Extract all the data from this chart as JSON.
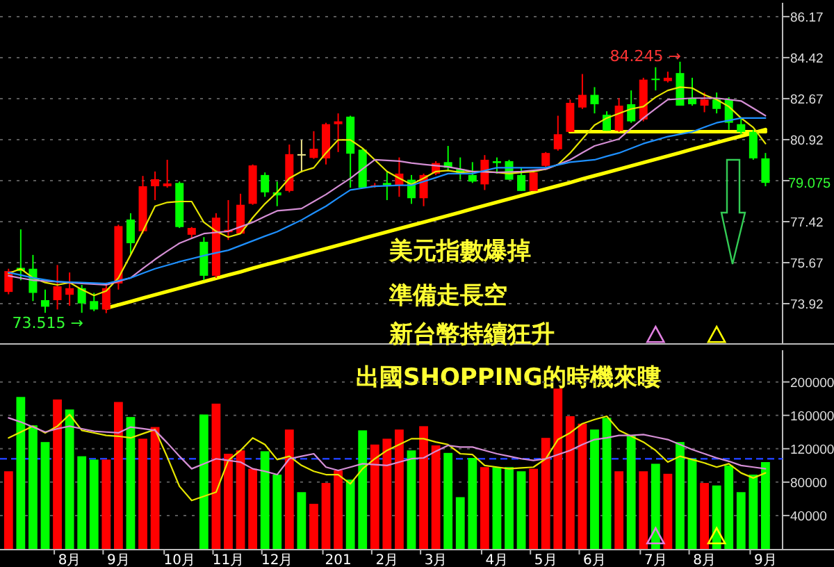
{
  "chart_data": [
    {
      "type": "candlestick",
      "ohlc": [
        [
          74.42,
          75.41,
          74.32,
          75.31
        ],
        [
          75.45,
          77.09,
          74.92,
          75.31
        ],
        [
          75.41,
          76.0,
          74.03,
          74.38
        ],
        [
          74.07,
          74.52,
          73.53,
          73.79
        ],
        [
          74.07,
          75.57,
          73.67,
          74.66
        ],
        [
          74.3,
          75.25,
          73.83,
          74.58
        ],
        [
          74.58,
          74.72,
          73.53,
          73.93
        ],
        [
          74.03,
          74.38,
          73.6,
          73.67
        ],
        [
          73.67,
          74.82,
          73.515,
          74.58
        ],
        [
          74.78,
          77.29,
          74.52,
          77.23
        ],
        [
          77.51,
          77.78,
          76.04,
          76.5
        ],
        [
          77.01,
          79.37,
          76.91,
          78.93
        ],
        [
          78.93,
          79.56,
          78.34,
          79.23
        ],
        [
          78.93,
          80.06,
          78.87,
          79.05
        ],
        [
          79.07,
          79.13,
          77.15,
          77.19
        ],
        [
          76.86,
          77.19,
          76.7,
          77.15
        ],
        [
          76.56,
          76.76,
          74.92,
          75.11
        ],
        [
          75.11,
          77.78,
          75.02,
          77.59
        ],
        [
          76.97,
          78.34,
          76.64,
          77.07
        ],
        [
          76.91,
          78.61,
          76.91,
          78.14
        ],
        [
          78.18,
          79.86,
          78.14,
          79.82
        ],
        [
          79.41,
          79.52,
          78.48,
          78.67
        ],
        [
          78.67,
          79.13,
          78.08,
          78.54
        ],
        [
          78.73,
          80.71,
          78.67,
          80.3
        ],
        [
          80.3,
          80.91,
          79.52,
          80.3
        ],
        [
          80.14,
          81.28,
          80.1,
          80.53
        ],
        [
          80.12,
          81.64,
          79.86,
          81.58
        ],
        [
          81.58,
          82.04,
          80.39,
          81.7
        ],
        [
          81.9,
          81.94,
          78.87,
          80.32
        ],
        [
          80.49,
          80.55,
          78.87,
          78.87
        ],
        [
          78.97,
          79.07,
          78.87,
          78.97
        ],
        [
          79.07,
          79.56,
          78.34,
          78.97
        ],
        [
          78.97,
          80.16,
          78.48,
          79.47
        ],
        [
          79.21,
          79.41,
          78.18,
          78.42
        ],
        [
          78.42,
          79.47,
          78.08,
          79.41
        ],
        [
          79.47,
          80.0,
          79.41,
          79.92
        ],
        [
          79.96,
          80.65,
          79.6,
          79.72
        ],
        [
          79.66,
          80.16,
          79.21,
          79.47
        ],
        [
          79.41,
          79.96,
          79.07,
          79.13
        ],
        [
          79.01,
          80.26,
          78.77,
          80.06
        ],
        [
          80.0,
          80.16,
          79.47,
          79.92
        ],
        [
          80.0,
          80.06,
          79.21,
          79.21
        ],
        [
          79.41,
          79.72,
          78.73,
          78.73
        ],
        [
          78.73,
          79.6,
          78.73,
          79.52
        ],
        [
          79.8,
          80.39,
          79.76,
          80.35
        ],
        [
          80.51,
          81.94,
          80.45,
          81.15
        ],
        [
          81.25,
          82.63,
          81.25,
          82.49
        ],
        [
          82.29,
          83.72,
          82.23,
          82.83
        ],
        [
          82.83,
          83.16,
          82.04,
          82.43
        ],
        [
          81.98,
          82.13,
          81.3,
          81.3
        ],
        [
          81.3,
          82.69,
          81.25,
          82.37
        ],
        [
          82.43,
          83.02,
          81.64,
          81.7
        ],
        [
          81.78,
          83.56,
          81.7,
          83.48
        ],
        [
          83.52,
          84.01,
          83.02,
          83.48
        ],
        [
          83.42,
          83.82,
          83.36,
          83.56
        ],
        [
          83.76,
          84.245,
          82.37,
          82.37
        ],
        [
          82.69,
          83.56,
          82.37,
          82.43
        ],
        [
          82.37,
          82.93,
          82.09,
          82.63
        ],
        [
          82.63,
          82.93,
          82.04,
          82.23
        ],
        [
          82.63,
          82.73,
          81.34,
          81.64
        ],
        [
          81.58,
          81.84,
          81.15,
          81.25
        ],
        [
          81.25,
          81.34,
          80.06,
          80.12
        ],
        [
          80.12,
          80.35,
          78.93,
          79.075
        ]
      ],
      "colors": [
        "#ff0000",
        "#00ff00",
        "#00ff00",
        "#00ff00",
        "#ff0000",
        "#ff0000",
        "#00ff00",
        "#00ff00",
        "#ff0000",
        "#ff0000",
        "#00ff00",
        "#ff0000",
        "#ff0000",
        "#ff0000",
        "#00ff00",
        "#ff0000",
        "#00ff00",
        "#ff0000",
        "#ff0000",
        "#ff0000",
        "#ff0000",
        "#00ff00",
        "#00ff00",
        "#ff0000",
        "#f0e68c",
        "#ff0000",
        "#ff0000",
        "#ff0000",
        "#00ff00",
        "#00ff00",
        "#ff0000",
        "#00ff00",
        "#ff0000",
        "#00ff00",
        "#ff0000",
        "#ff0000",
        "#00ff00",
        "#00ff00",
        "#00ff00",
        "#ff0000",
        "#00ff00",
        "#00ff00",
        "#00ff00",
        "#ff0000",
        "#ff0000",
        "#ff0000",
        "#ff0000",
        "#ff0000",
        "#00ff00",
        "#00ff00",
        "#ff0000",
        "#00ff00",
        "#ff0000",
        "#00ff00",
        "#ff0000",
        "#00ff00",
        "#00ff00",
        "#ff0000",
        "#00ff00",
        "#00ff00",
        "#00ff00",
        "#00ff00",
        "#00ff00"
      ],
      "series": [
        {
          "type": "line",
          "color": "#e6e600",
          "values": [
            75.21,
            75.41,
            75.02,
            74.82,
            74.72,
            74.82,
            74.52,
            74.27,
            74.46,
            75.02,
            76.0,
            77.01,
            78.08,
            78.24,
            78.28,
            78.28,
            77.39,
            77.01,
            76.76,
            76.91,
            77.59,
            78.18,
            78.67,
            79.27,
            79.56,
            79.72,
            80.35,
            80.91,
            80.91,
            80.55,
            80.06,
            79.56,
            79.27,
            79.01,
            79.27,
            79.56,
            79.6,
            79.52,
            79.56,
            79.56,
            79.52,
            79.47,
            79.52,
            79.56,
            79.66,
            79.86,
            80.35,
            80.95,
            81.54,
            81.84,
            82.04,
            82.23,
            82.33,
            82.73,
            83.02,
            83.16,
            83.12,
            82.83,
            82.63,
            82.33,
            81.84,
            81.44,
            80.75
          ]
        },
        {
          "type": "line",
          "color": "#d58fd5",
          "values": [
            75.11,
            75.01,
            74.92,
            74.89,
            74.86,
            74.82,
            74.78,
            74.75,
            74.72,
            74.87,
            75.02,
            75.42,
            75.81,
            76.16,
            76.5,
            76.71,
            76.91,
            76.96,
            77.01,
            77.2,
            77.39,
            77.64,
            77.88,
            77.93,
            77.98,
            78.28,
            78.58,
            78.93,
            79.27,
            79.67,
            80.06,
            80.03,
            80.0,
            79.92,
            79.86,
            79.81,
            79.76,
            79.66,
            79.56,
            79.54,
            79.52,
            79.54,
            79.56,
            79.61,
            79.66,
            79.86,
            80.06,
            80.36,
            80.65,
            80.8,
            80.95,
            81.4,
            81.84,
            82.24,
            82.63,
            82.66,
            82.69,
            82.69,
            82.69,
            82.63,
            82.57,
            82.26,
            81.94
          ]
        },
        {
          "type": "line",
          "color": "#1e90ff",
          "values": [
            75.25,
            75.14,
            75.02,
            74.94,
            74.86,
            74.84,
            74.82,
            74.8,
            74.78,
            74.9,
            75.02,
            75.22,
            75.41,
            75.56,
            75.71,
            75.84,
            75.97,
            76.09,
            76.2,
            76.4,
            76.6,
            76.8,
            76.99,
            77.24,
            77.49,
            77.79,
            78.08,
            78.43,
            78.77,
            78.85,
            78.93,
            78.95,
            78.97,
            78.97,
            79.13,
            79.3,
            79.47,
            79.47,
            79.47,
            79.6,
            79.72,
            79.72,
            79.72,
            79.72,
            79.72,
            79.84,
            79.96,
            80.01,
            80.06,
            80.21,
            80.35,
            80.55,
            80.75,
            80.9,
            81.05,
            81.15,
            81.25,
            81.45,
            81.64,
            81.74,
            81.84,
            81.84,
            81.84
          ]
        },
        {
          "type": "line",
          "color": "#ffff00",
          "values": [
            null,
            null,
            null,
            null,
            null,
            null,
            null,
            null,
            73.73,
            73.87,
            74.01,
            74.16,
            74.3,
            74.44,
            74.58,
            74.72,
            74.86,
            75.0,
            75.14,
            75.28,
            75.43,
            75.57,
            75.71,
            75.85,
            75.99,
            76.13,
            76.27,
            76.41,
            76.55,
            76.7,
            76.84,
            76.98,
            77.12,
            77.26,
            77.4,
            77.54,
            77.68,
            77.82,
            77.97,
            78.11,
            78.25,
            78.39,
            78.53,
            78.67,
            78.81,
            78.95,
            79.09,
            79.24,
            79.38,
            79.52,
            79.66,
            79.8,
            79.94,
            80.08,
            80.22,
            80.36,
            80.51,
            80.65,
            80.79,
            80.93,
            81.07,
            81.21,
            81.35
          ]
        },
        {
          "type": "line",
          "color": "#ffff00",
          "values": [
            null,
            null,
            null,
            null,
            null,
            null,
            null,
            null,
            null,
            null,
            null,
            null,
            null,
            null,
            null,
            null,
            null,
            null,
            null,
            null,
            null,
            null,
            null,
            null,
            null,
            null,
            null,
            null,
            null,
            null,
            null,
            null,
            null,
            null,
            null,
            null,
            null,
            null,
            null,
            null,
            null,
            null,
            null,
            null,
            null,
            null,
            81.26,
            81.26,
            81.26,
            81.26,
            81.26,
            81.26,
            81.26,
            81.26,
            81.26,
            81.26,
            81.26,
            81.26,
            81.26,
            81.26,
            81.26,
            81.26,
            81.26
          ]
        },
        {
          "type": "scatter",
          "marker": "triangle",
          "values": [
            null,
            null,
            null,
            null,
            null,
            null,
            null,
            null,
            null,
            null,
            null,
            null,
            null,
            null,
            null,
            null,
            null,
            null,
            null,
            null,
            null,
            null,
            null,
            null,
            null,
            null,
            null,
            null,
            null,
            null,
            null,
            null,
            null,
            null,
            null,
            null,
            null,
            null,
            null,
            null,
            null,
            null,
            null,
            null,
            null,
            null,
            null,
            null,
            null,
            null,
            null,
            null,
            null,
            72.58,
            null,
            null,
            null,
            null,
            72.58,
            null,
            null,
            null,
            null
          ],
          "colors": [
            null,
            null,
            null,
            null,
            null,
            null,
            null,
            null,
            null,
            null,
            null,
            null,
            null,
            null,
            null,
            null,
            null,
            null,
            null,
            null,
            null,
            null,
            null,
            null,
            null,
            null,
            null,
            null,
            null,
            null,
            null,
            null,
            null,
            null,
            null,
            null,
            null,
            null,
            null,
            null,
            null,
            null,
            null,
            null,
            null,
            null,
            null,
            null,
            null,
            null,
            null,
            null,
            null,
            "#e080e0",
            null,
            null,
            null,
            null,
            "#ffff00",
            null,
            null,
            null,
            null
          ]
        }
      ],
      "ylim": [
        72.23,
        86.76
      ],
      "yticks": [
        73.92,
        75.67,
        77.42,
        {
          "value": 79.17,
          "label": null
        },
        80.92,
        82.67,
        84.42,
        86.17
      ],
      "grid": "y",
      "annotations": [
        "美元指數爆掉",
        "準備走長空",
        "新台幣持續狂升",
        "出國SHOPPING的時機來瞜",
        "73.515 →",
        "84.245 →",
        "79.075"
      ]
    },
    {
      "type": "bar",
      "categories": [
        null,
        null,
        null,
        null,
        null,
        "8月",
        null,
        null,
        null,
        "9月",
        null,
        null,
        null,
        null,
        "10月",
        null,
        null,
        null,
        "11月",
        null,
        null,
        null,
        "12月",
        null,
        null,
        null,
        null,
        "201",
        null,
        null,
        null,
        "2月",
        null,
        null,
        null,
        "3月",
        null,
        null,
        null,
        null,
        "4月",
        null,
        null,
        null,
        "5月",
        null,
        null,
        null,
        "6月",
        null,
        null,
        null,
        null,
        "7月",
        null,
        null,
        null,
        "8月",
        null,
        null,
        null,
        null,
        "9月"
      ],
      "series": [
        {
          "type": "bar",
          "values": [
            93000,
            182000,
            148000,
            128000,
            179000,
            167000,
            111000,
            107000,
            107000,
            176000,
            158000,
            132000,
            146000,
            null,
            null,
            null,
            161000,
            174000,
            114000,
            118000,
            96000,
            117000,
            89000,
            143000,
            68000,
            54000,
            79000,
            94000,
            83000,
            142000,
            125000,
            132000,
            143000,
            118000,
            147000,
            124000,
            115000,
            62000,
            109000,
            98000,
            98000,
            98000,
            93000,
            96000,
            133000,
            192000,
            159000,
            150000,
            143000,
            157000,
            93000,
            136000,
            93000,
            102000,
            90000,
            128000,
            108000,
            79000,
            76000,
            100000,
            68000,
            89000,
            104000
          ],
          "colors": [
            "#ff0000",
            "#00ff00",
            "#00ff00",
            "#00ff00",
            "#ff0000",
            "#00ff00",
            "#00ff00",
            "#00ff00",
            "#ff0000",
            "#ff0000",
            "#00ff00",
            "#ff0000",
            "#ff0000",
            null,
            null,
            null,
            "#00ff00",
            "#ff0000",
            "#ff0000",
            "#ff0000",
            "#ff0000",
            "#00ff00",
            "#00ff00",
            "#ff0000",
            "#00ff00",
            "#ff0000",
            "#ff0000",
            "#ff0000",
            "#00ff00",
            "#00ff00",
            "#ff0000",
            "#ff0000",
            "#ff0000",
            "#00ff00",
            "#ff0000",
            "#ff0000",
            "#00ff00",
            "#00ff00",
            "#00ff00",
            "#ff0000",
            "#00ff00",
            "#00ff00",
            "#00ff00",
            "#ff0000",
            "#ff0000",
            "#ff0000",
            "#ff0000",
            "#ff0000",
            "#00ff00",
            "#00ff00",
            "#ff0000",
            "#00ff00",
            "#ff0000",
            "#00ff00",
            "#ff0000",
            "#00ff00",
            "#00ff00",
            "#ff0000",
            "#00ff00",
            "#00ff00",
            "#00ff00",
            "#00ff00",
            "#00ff00"
          ]
        },
        {
          "type": "line",
          "color": "#e6e600",
          "values": [
            133000,
            140000,
            147000,
            139000,
            147000,
            161000,
            142000,
            139000,
            136000,
            135000,
            133000,
            138000,
            143000,
            110000,
            75000,
            58000,
            63000,
            68000,
            106000,
            118000,
            133000,
            125000,
            107000,
            111000,
            100000,
            93000,
            89000,
            89000,
            78000,
            96000,
            108000,
            118000,
            125000,
            132000,
            132000,
            128000,
            125000,
            114000,
            113000,
            100000,
            98000,
            96000,
            97000,
            98000,
            108000,
            131000,
            139000,
            150000,
            155000,
            159000,
            142000,
            135000,
            128000,
            118000,
            104000,
            111000,
            107000,
            103000,
            98000,
            102000,
            91000,
            85000,
            91000
          ]
        },
        {
          "type": "line",
          "color": "#d58fd5",
          "values": [
            157000,
            152000,
            146000,
            140000,
            144000,
            147000,
            144000,
            141000,
            140000,
            139000,
            146000,
            144000,
            142000,
            127000,
            111000,
            96000,
            102000,
            108000,
            106000,
            104000,
            96000,
            93000,
            89000,
            108000,
            111000,
            114000,
            98000,
            94000,
            98000,
            102000,
            101000,
            100000,
            104000,
            108000,
            109000,
            117000,
            124000,
            122000,
            122000,
            118000,
            114000,
            111000,
            108000,
            106000,
            108000,
            113000,
            118000,
            125000,
            131000,
            133000,
            136000,
            136000,
            137000,
            134000,
            131000,
            125000,
            119000,
            114000,
            109000,
            105000,
            100000,
            98000,
            96000
          ]
        },
        {
          "type": "scatter",
          "marker": "triangle",
          "values": [
            null,
            null,
            null,
            null,
            null,
            null,
            null,
            null,
            null,
            null,
            null,
            null,
            null,
            null,
            null,
            null,
            null,
            null,
            null,
            null,
            null,
            null,
            null,
            null,
            null,
            null,
            null,
            null,
            null,
            null,
            null,
            null,
            null,
            null,
            null,
            null,
            null,
            null,
            null,
            null,
            null,
            null,
            null,
            null,
            null,
            null,
            null,
            null,
            null,
            null,
            null,
            null,
            null,
            15000,
            null,
            null,
            null,
            null,
            15000,
            null,
            null,
            null,
            null
          ],
          "colors": [
            null,
            null,
            null,
            null,
            null,
            null,
            null,
            null,
            null,
            null,
            null,
            null,
            null,
            null,
            null,
            null,
            null,
            null,
            null,
            null,
            null,
            null,
            null,
            null,
            null,
            null,
            null,
            null,
            null,
            null,
            null,
            null,
            null,
            null,
            null,
            null,
            null,
            null,
            null,
            null,
            null,
            null,
            null,
            null,
            null,
            null,
            null,
            null,
            null,
            null,
            null,
            null,
            null,
            "#e080e0",
            null,
            null,
            null,
            null,
            "#ffff00",
            null,
            null,
            null,
            null
          ]
        }
      ],
      "ref_lines": [
        {
          "axis": "y",
          "value": 108000,
          "color": "#2040ff",
          "line_style": "dashed"
        }
      ],
      "ylim": [
        0,
        238000
      ],
      "yticks": [
        40000,
        80000,
        120000,
        160000,
        200000
      ],
      "grid": "y"
    }
  ]
}
